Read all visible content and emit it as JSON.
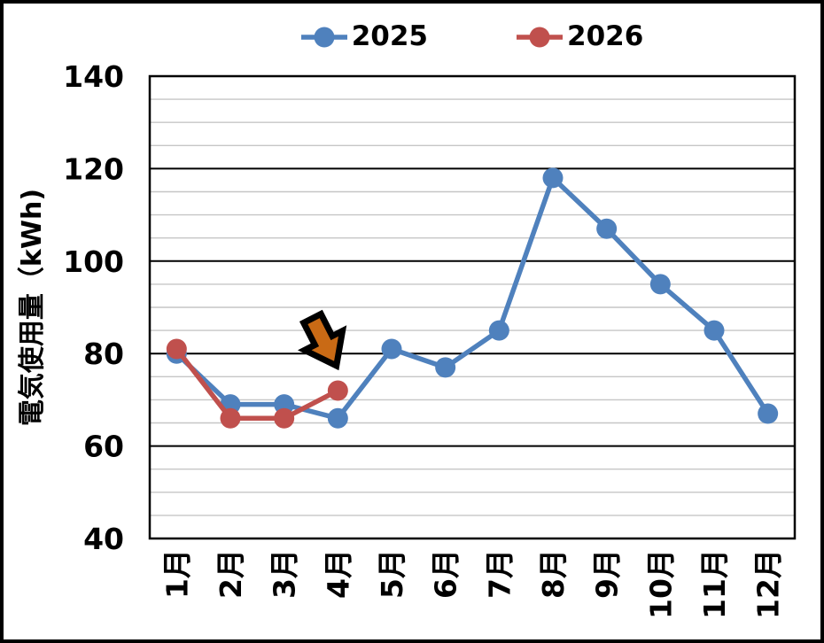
{
  "chart_data": {
    "type": "line",
    "title": "",
    "xlabel": "",
    "ylabel": "電気使用量（kWh)",
    "categories": [
      "1月",
      "2月",
      "3月",
      "4月",
      "5月",
      "6月",
      "7月",
      "8月",
      "9月",
      "10月",
      "11月",
      "12月"
    ],
    "series": [
      {
        "name": "2025",
        "color": "#4F81BD",
        "values": [
          80,
          69,
          69,
          66,
          81,
          77,
          85,
          118,
          107,
          95,
          85,
          67
        ]
      },
      {
        "name": "2026",
        "color": "#C0504D",
        "values": [
          81,
          66,
          66,
          72
        ]
      }
    ],
    "ylim": [
      40,
      140
    ],
    "y_ticks": [
      40,
      60,
      80,
      100,
      120,
      140
    ],
    "y_major_step": 20,
    "y_minor_step": 5,
    "grid": "horizontal",
    "legend_position": "top-center",
    "colors": {
      "grid_major": "#000000",
      "grid_minor": "#C6C6C6",
      "plot_border": "#000000",
      "background": "#FFFFFF",
      "text": "#000000"
    },
    "annotation": {
      "type": "down-arrow",
      "points_at": "2026 4月 data point",
      "fill": "#C96A15",
      "outline": "#000000"
    }
  }
}
